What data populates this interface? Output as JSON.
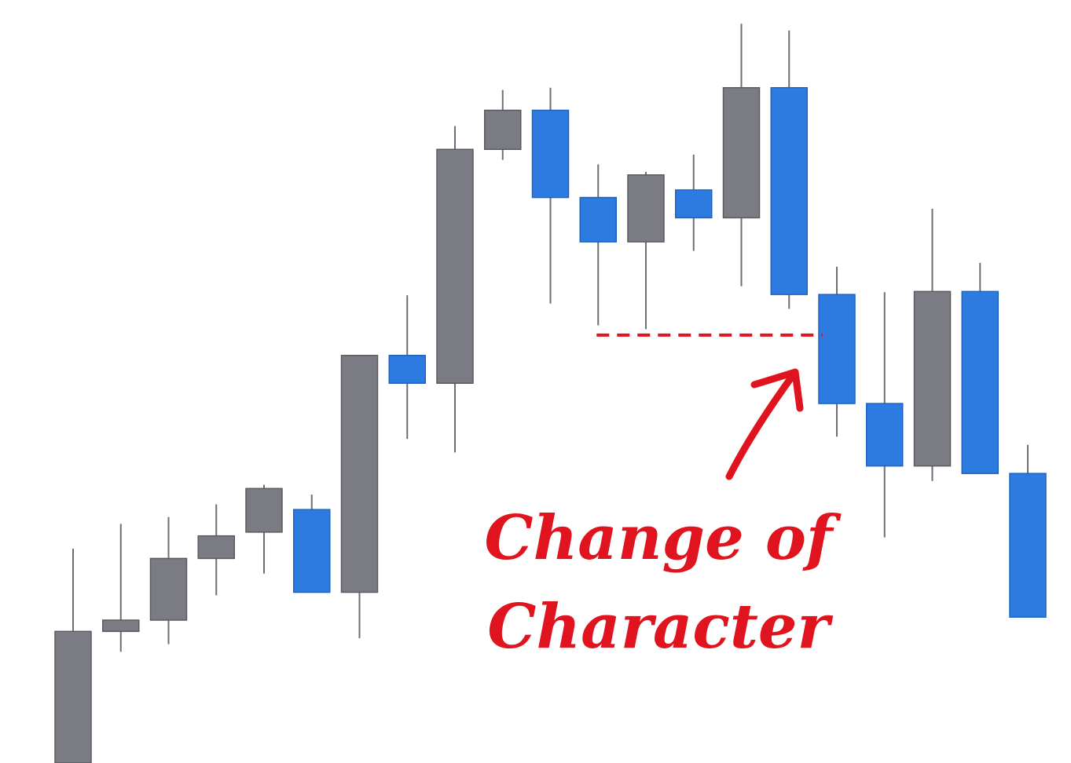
{
  "chart_data": {
    "type": "candlestick",
    "title": "",
    "xlabel": "",
    "ylabel": "",
    "ylim": [
      0,
      1000
    ],
    "grid": false,
    "legend": "none",
    "colors": {
      "bull": "#7b7b84",
      "bear": "#2d7be0",
      "annotation": "#e0141e"
    },
    "candles": [
      {
        "open": 0,
        "high": 285,
        "low": 0,
        "close": 175
      },
      {
        "open": 175,
        "high": 318,
        "low": 148,
        "close": 190
      },
      {
        "open": 190,
        "high": 327,
        "low": 158,
        "close": 272
      },
      {
        "open": 272,
        "high": 344,
        "low": 223,
        "close": 302
      },
      {
        "open": 307,
        "high": 370,
        "low": 252,
        "close": 365
      },
      {
        "open": 337,
        "high": 357,
        "low": 227,
        "close": 227
      },
      {
        "open": 227,
        "high": 542,
        "low": 166,
        "close": 542
      },
      {
        "open": 542,
        "high": 622,
        "low": 431,
        "close": 505
      },
      {
        "open": 505,
        "high": 847,
        "low": 413,
        "close": 816
      },
      {
        "open": 816,
        "high": 895,
        "low": 802,
        "close": 868
      },
      {
        "open": 868,
        "high": 898,
        "low": 611,
        "close": 752
      },
      {
        "open": 752,
        "high": 796,
        "low": 582,
        "close": 693
      },
      {
        "open": 693,
        "high": 786,
        "low": 577,
        "close": 782
      },
      {
        "open": 762,
        "high": 809,
        "low": 681,
        "close": 725
      },
      {
        "open": 725,
        "high": 983,
        "low": 634,
        "close": 898
      },
      {
        "open": 898,
        "high": 974,
        "low": 604,
        "close": 623
      },
      {
        "open": 623,
        "high": 660,
        "low": 434,
        "close": 478
      },
      {
        "open": 478,
        "high": 626,
        "low": 300,
        "close": 395
      },
      {
        "open": 395,
        "high": 737,
        "low": 375,
        "close": 627
      },
      {
        "open": 627,
        "high": 665,
        "low": 385,
        "close": 385
      },
      {
        "open": 385,
        "high": 423,
        "low": 194,
        "close": 194
      }
    ],
    "annotation": {
      "text_line1": "Change of",
      "text_line2": "Character",
      "level": 569,
      "from_candle": 11,
      "to_candle": 16
    }
  }
}
